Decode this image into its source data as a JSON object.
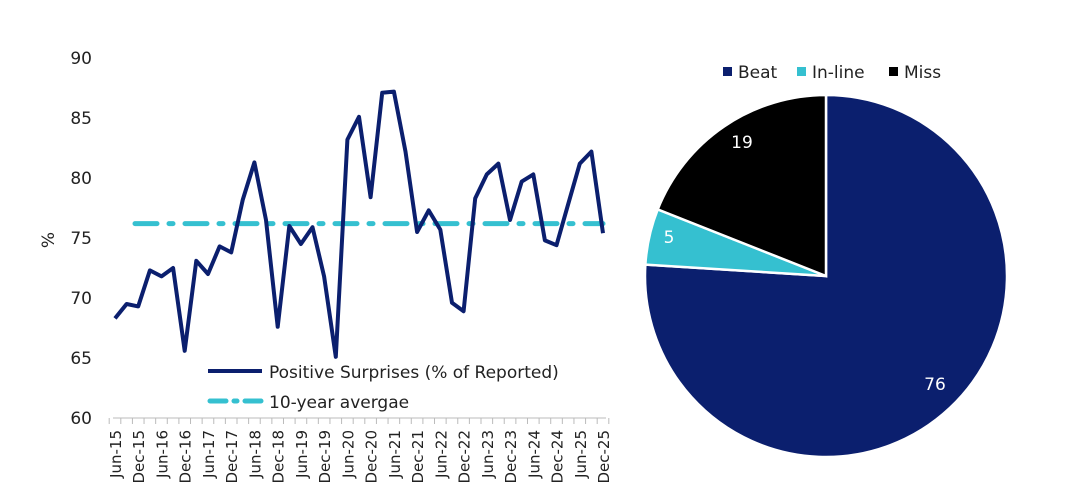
{
  "chart_data": [
    {
      "type": "line",
      "ylabel": "%",
      "ylim": [
        60,
        90
      ],
      "yticks": [
        60,
        65,
        70,
        75,
        80,
        85,
        90
      ],
      "xtick_labels": [
        "Jun-15",
        "Dec-15",
        "Jun-16",
        "Dec-16",
        "Jun-17",
        "Dec-17",
        "Jun-18",
        "Dec-18",
        "Jun-19",
        "Dec-19",
        "Jun-20",
        "Dec-20",
        "Jun-21",
        "Dec-21",
        "Jun-22",
        "Dec-22",
        "Jun-23",
        "Dec-23",
        "Jun-24",
        "Dec-24",
        "Jun-25",
        "Dec-25"
      ],
      "legend_position": "bottom-center",
      "series": [
        {
          "name": "Positive Surprises (% of Reported)",
          "color": "#0b1f6e",
          "style": "solid",
          "values": [
            68.3,
            69.5,
            69.3,
            72.3,
            71.8,
            72.5,
            65.6,
            73.1,
            72.0,
            74.3,
            73.8,
            78.2,
            81.3,
            76.5,
            67.6,
            76.0,
            74.5,
            75.9,
            71.8,
            65.1,
            83.2,
            85.1,
            78.4,
            87.1,
            87.2,
            82.2,
            75.5,
            77.3,
            75.7,
            69.6,
            68.9,
            78.3,
            80.3,
            81.2,
            76.5,
            79.7,
            80.3,
            74.8,
            74.4,
            77.8,
            81.2,
            82.2,
            75.4
          ]
        },
        {
          "name": "10-year avergae",
          "color": "#35c0d0",
          "style": "dash-dot",
          "value": 76.2
        }
      ]
    },
    {
      "type": "pie",
      "legend_position": "top",
      "categories": [
        "Beat",
        "In-line",
        "Miss"
      ],
      "values": [
        76,
        5,
        19
      ],
      "colors": [
        "#0b1f6e",
        "#35c0d0",
        "#000000"
      ],
      "label_colors": [
        "#ffffff",
        "#ffffff",
        "#ffffff"
      ]
    }
  ]
}
